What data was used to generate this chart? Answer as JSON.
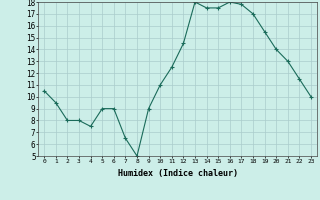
{
  "x": [
    0,
    1,
    2,
    3,
    4,
    5,
    6,
    7,
    8,
    9,
    10,
    11,
    12,
    13,
    14,
    15,
    16,
    17,
    18,
    19,
    20,
    21,
    22,
    23
  ],
  "y": [
    10.5,
    9.5,
    8.0,
    8.0,
    7.5,
    9.0,
    9.0,
    6.5,
    5.0,
    9.0,
    11.0,
    12.5,
    14.5,
    18.0,
    17.5,
    17.5,
    18.0,
    17.8,
    17.0,
    15.5,
    14.0,
    13.0,
    11.5,
    10.0
  ],
  "xlabel": "Humidex (Indice chaleur)",
  "ylim": [
    5,
    18
  ],
  "xlim": [
    -0.5,
    23.5
  ],
  "yticks": [
    5,
    6,
    7,
    8,
    9,
    10,
    11,
    12,
    13,
    14,
    15,
    16,
    17,
    18
  ],
  "xticks": [
    0,
    1,
    2,
    3,
    4,
    5,
    6,
    7,
    8,
    9,
    10,
    11,
    12,
    13,
    14,
    15,
    16,
    17,
    18,
    19,
    20,
    21,
    22,
    23
  ],
  "line_color": "#1a6b5a",
  "marker": "+",
  "bg_color": "#cceee8",
  "grid_color": "#aacccc"
}
